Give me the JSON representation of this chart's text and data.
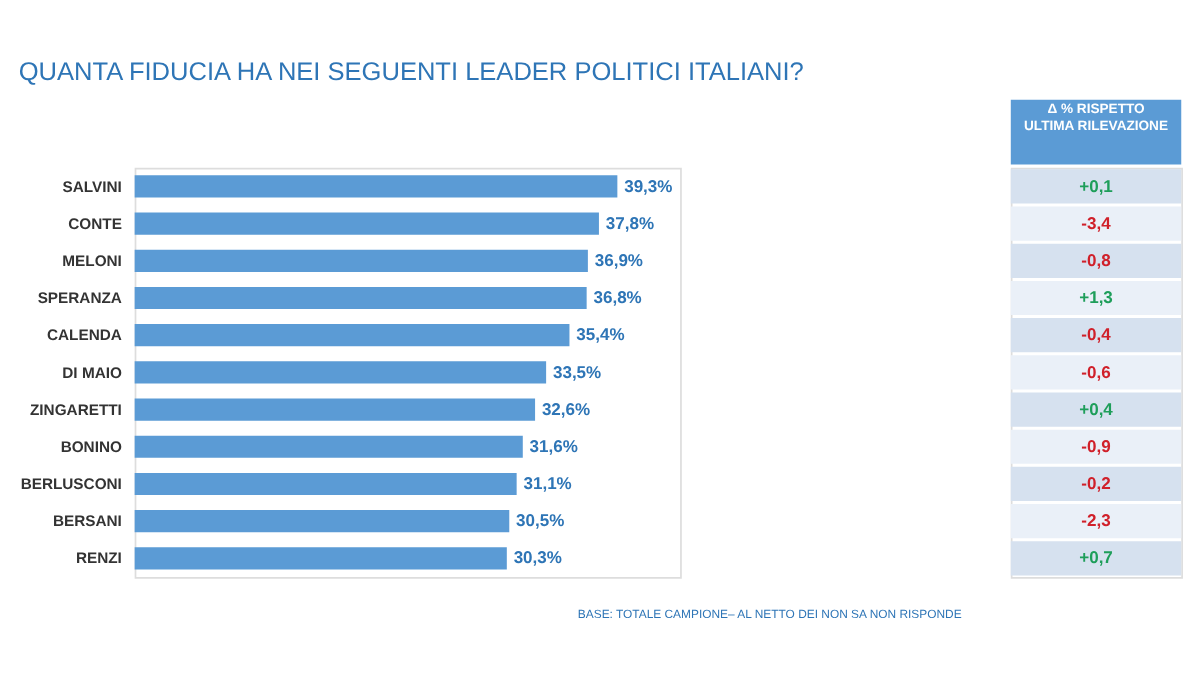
{
  "chart_data": [
    {
      "type": "bar",
      "orientation": "horizontal",
      "title": "QUANTA FIDUCIA HA NEI SEGUENTI LEADER POLITICI ITALIANI?",
      "categories": [
        "SALVINI",
        "CONTE",
        "MELONI",
        "SPERANZA",
        "CALENDA",
        "DI MAIO",
        "ZINGARETTI",
        "BONINO",
        "BERLUSCONI",
        "BERSANI",
        "RENZI"
      ],
      "values": [
        39.3,
        37.8,
        36.9,
        36.8,
        35.4,
        33.5,
        32.6,
        31.6,
        31.1,
        30.5,
        30.3
      ],
      "value_labels": [
        "39,3%",
        "37,8%",
        "36,9%",
        "36,8%",
        "35,4%",
        "33,5%",
        "32,6%",
        "31,6%",
        "31,1%",
        "30,5%",
        "30,3%"
      ],
      "color": "#5b9bd5",
      "grid": false,
      "tick_labels": "y",
      "annotations": [
        "BASE: TOTALE CAMPIONE– AL NETTO DEI NON SA NON RISPONDE"
      ]
    },
    {
      "type": "other",
      "title": "Δ % RISPETTO ULTIMA RILEVAZIONE",
      "categories": [
        null,
        null,
        null,
        null,
        null,
        null,
        null,
        null,
        null,
        null,
        null
      ],
      "values": [
        0.1,
        -3.4,
        -0.8,
        1.3,
        -0.4,
        -0.6,
        0.4,
        -0.9,
        -0.2,
        -2.3,
        0.7
      ],
      "value_labels": [
        "+0,1",
        "-3,4",
        "-0,8",
        "+1,3",
        "-0,4",
        "-0,6",
        "+0,4",
        "-0,9",
        "-0,2",
        "-2,3",
        "+0,7"
      ],
      "colors": [
        "#1e9e5a",
        "#d0202a",
        "#d0202a",
        "#1e9e5a",
        "#d0202a",
        "#d0202a",
        "#1e9e5a",
        "#d0202a",
        "#d0202a",
        "#d0202a",
        "#1e9e5a"
      ]
    }
  ]
}
